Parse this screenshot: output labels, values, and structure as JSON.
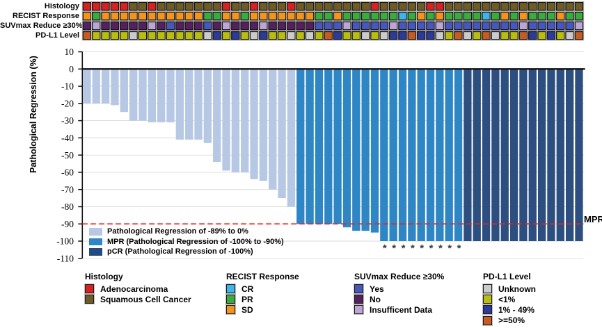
{
  "tracks": {
    "labels": [
      "Histology",
      "RECIST Response",
      "SUVmax Reduce ≥30%",
      "PD-L1 Level"
    ],
    "color_key": {
      "R": "#d92121",
      "S": "#6f5b24",
      "O": "#f5941d",
      "G": "#3aab3e",
      "C": "#3db5e8",
      "P": "#55205f",
      "L": "#bda6d6",
      "SB": "#4757bf",
      "GY": "#cbcbcb",
      "Y": "#b9bd0b",
      "DB": "#2b3a9b",
      "OR": "#c85b22"
    },
    "histology": [
      "R",
      "R",
      "R",
      "R",
      "R",
      "S",
      "S",
      "R",
      "S",
      "S",
      "S",
      "S",
      "S",
      "S",
      "S",
      "R",
      "S",
      "S",
      "R",
      "S",
      "S",
      "S",
      "R",
      "S",
      "S",
      "S",
      "S",
      "S",
      "S",
      "S",
      "S",
      "R",
      "S",
      "S",
      "S",
      "S",
      "S",
      "R",
      "R",
      "S",
      "S",
      "S",
      "S",
      "S",
      "S",
      "S",
      "S",
      "S",
      "S",
      "S",
      "S",
      "S",
      "S",
      "S"
    ],
    "recist": [
      "O",
      "G",
      "O",
      "O",
      "O",
      "O",
      "O",
      "O",
      "O",
      "O",
      "O",
      "O",
      "O",
      "G",
      "G",
      "O",
      "O",
      "G",
      "O",
      "O",
      "O",
      "O",
      "O",
      "O",
      "O",
      "G",
      "G",
      "O",
      "G",
      "G",
      "G",
      "G",
      "G",
      "G",
      "C",
      "G",
      "O",
      "G",
      "O",
      "G",
      "G",
      "G",
      "G",
      "C",
      "G",
      "O",
      "G",
      "O",
      "G",
      "G",
      "G",
      "O",
      "G",
      "G"
    ],
    "suvmax": [
      "P",
      "L",
      "P",
      "P",
      "P",
      "P",
      "P",
      "L",
      "P",
      "SB",
      "P",
      "P",
      "P",
      "SB",
      "P",
      "L",
      "P",
      "P",
      "P",
      "L",
      "P",
      "P",
      "P",
      "P",
      "P",
      "SB",
      "SB",
      "SB",
      "L",
      "SB",
      "SB",
      "SB",
      "SB",
      "L",
      "SB",
      "SB",
      "SB",
      "SB",
      "L",
      "SB",
      "SB",
      "SB",
      "SB",
      "SB",
      "SB",
      "SB",
      "SB",
      "L",
      "SB",
      "SB",
      "SB",
      "SB",
      "SB",
      "L"
    ],
    "pdl1": [
      "OR",
      "Y",
      "Y",
      "Y",
      "Y",
      "GY",
      "Y",
      "Y",
      "Y",
      "Y",
      "Y",
      "Y",
      "Y",
      "GY",
      "DB",
      "Y",
      "DB",
      "Y",
      "GY",
      "DB",
      "Y",
      "Y",
      "GY",
      "Y",
      "GY",
      "Y",
      "OR",
      "DB",
      "Y",
      "Y",
      "GY",
      "Y",
      "GY",
      "DB",
      "DB",
      "OR",
      "DB",
      "DB",
      "GY",
      "Y",
      "OR",
      "GY",
      "Y",
      "OR",
      "GY",
      "Y",
      "Y",
      "OR",
      "DB",
      "Y",
      "DB",
      "Y",
      "GY",
      "OR"
    ]
  },
  "chart_data": {
    "type": "bar",
    "subtype": "waterfall",
    "ylabel": "Pathological Regression (%)",
    "ylim": [
      10,
      -110
    ],
    "yticks": [
      10,
      0,
      -10,
      -20,
      -30,
      -40,
      -50,
      -60,
      -70,
      -80,
      -90,
      -100,
      -110
    ],
    "grid": "horizontal",
    "values": [
      -20,
      -20,
      -20,
      -21,
      -25,
      -30,
      -30,
      -31,
      -31,
      -31,
      -41,
      -41,
      -41,
      -43,
      -54,
      -59,
      -60,
      -60,
      -64,
      -65,
      -70,
      -75,
      -80,
      -90,
      -90,
      -90,
      -90,
      -90,
      -92,
      -94,
      -94,
      -95,
      -100,
      -100,
      -100,
      -100,
      -100,
      -100,
      -100,
      -100,
      -100,
      -100,
      -100,
      -100,
      -100,
      -100,
      -100,
      -100,
      -100,
      -100,
      -100,
      -100,
      -100,
      -100
    ],
    "bar_classes": [
      "partial",
      "partial",
      "partial",
      "partial",
      "partial",
      "partial",
      "partial",
      "partial",
      "partial",
      "partial",
      "partial",
      "partial",
      "partial",
      "partial",
      "partial",
      "partial",
      "partial",
      "partial",
      "partial",
      "partial",
      "partial",
      "partial",
      "partial",
      "mpr",
      "mpr",
      "mpr",
      "mpr",
      "mpr",
      "mpr",
      "mpr",
      "mpr",
      "mpr",
      "mpr",
      "mpr",
      "mpr",
      "mpr",
      "mpr",
      "mpr",
      "mpr",
      "mpr",
      "mpr",
      "pcr",
      "pcr",
      "pcr",
      "pcr",
      "pcr",
      "pcr",
      "pcr",
      "pcr",
      "pcr",
      "pcr",
      "pcr",
      "pcr",
      "pcr"
    ],
    "class_colors": {
      "partial": "#b6c8e4",
      "mpr": "#2e86c5",
      "pcr": "#2d4f80"
    },
    "asterisk_bars": [
      33,
      34,
      35,
      36,
      37,
      38,
      39,
      40,
      41
    ],
    "asterisk_glyph": "*",
    "reference_line": {
      "value": -90,
      "label": "MPR",
      "color": "#e7251d",
      "style": "dashed"
    },
    "zero_line_color": "#111111",
    "legend_position": "inside bottom-left"
  },
  "inplot_legend": {
    "items": [
      {
        "label": "Pathological Regression of -89% to 0%",
        "color": "#b6c8e4"
      },
      {
        "label": "MPR (Pathological Regression of -100% to -90%)",
        "color": "#2e86c5"
      },
      {
        "label": "pCR (Pathological Regression of -100%)",
        "color": "#254a7e"
      }
    ]
  },
  "legends": [
    {
      "title": "Histology",
      "items": [
        {
          "label": "Adenocarcinoma",
          "color": "#d92121"
        },
        {
          "label": "Squamous Cell Cancer",
          "color": "#6f5b24"
        }
      ]
    },
    {
      "title": "RECIST Response",
      "items": [
        {
          "label": "CR",
          "color": "#3db5e8"
        },
        {
          "label": "PR",
          "color": "#3aab3e"
        },
        {
          "label": "SD",
          "color": "#f5941d"
        }
      ]
    },
    {
      "title": "SUVmax Reduce ≥30%",
      "items": [
        {
          "label": "Yes",
          "color": "#4757bf"
        },
        {
          "label": "No",
          "color": "#55205f"
        },
        {
          "label": "Insufficent Data",
          "color": "#bda6d6"
        }
      ]
    },
    {
      "title": "PD-L1 Level",
      "items": [
        {
          "label": "Unknown",
          "color": "#cbcbcb"
        },
        {
          "label": "<1%",
          "color": "#b9bd0b"
        },
        {
          "label": "1% - 49%",
          "color": "#2b3a9b"
        },
        {
          "label": ">=50%",
          "color": "#c85b22"
        }
      ]
    }
  ]
}
